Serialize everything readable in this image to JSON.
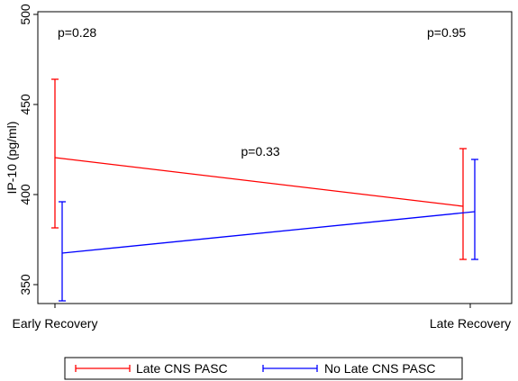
{
  "chart_data": {
    "type": "line",
    "categories": [
      "Early Recovery",
      "Late Recovery"
    ],
    "ylabel": "IP-10 (pg/ml)",
    "ylim": [
      340,
      500
    ],
    "yticks": [
      350,
      400,
      450,
      500
    ],
    "grid": false,
    "legend_position": "bottom",
    "series": [
      {
        "name": "Late CNS PASC",
        "color": "#ff0000",
        "values": [
          420.5,
          393.5
        ],
        "lower": [
          381.5,
          364.0
        ],
        "upper": [
          464.0,
          425.5
        ]
      },
      {
        "name": "No Late CNS PASC",
        "color": "#0000ff",
        "values": [
          367.5,
          390.5
        ],
        "lower": [
          341.0,
          364.0
        ],
        "upper": [
          396.0,
          419.5
        ]
      }
    ],
    "annotations": [
      {
        "text": "p=0.28",
        "category": "Early Recovery",
        "y": 490
      },
      {
        "text": "p=0.95",
        "category": "Late Recovery",
        "y": 490
      },
      {
        "text": "p=0.33",
        "between": [
          "Early Recovery",
          "Late Recovery"
        ],
        "y": 424
      }
    ]
  }
}
